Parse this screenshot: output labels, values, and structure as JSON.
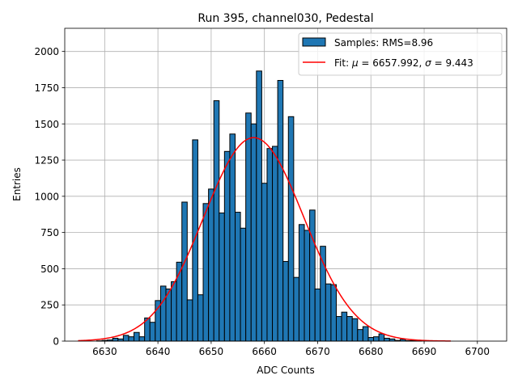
{
  "chart_data": {
    "type": "bar",
    "title": "Run 395, channel030, Pedestal",
    "xlabel": "ADC Counts",
    "ylabel": "Entries",
    "xlim": [
      6622.5,
      6705.5
    ],
    "ylim": [
      0,
      2160
    ],
    "grid": true,
    "legend_position": "top-right",
    "xticks": [
      6630,
      6640,
      6650,
      6660,
      6670,
      6680,
      6690,
      6700
    ],
    "yticks": [
      0,
      250,
      500,
      750,
      1000,
      1250,
      1500,
      1750,
      2000
    ],
    "bar_color": "#1f77b4",
    "fit_color": "#ff0000",
    "series": [
      {
        "name": "Samples: RMS=8.96",
        "kind": "histogram",
        "bin_width": 1,
        "bin_centers": [
          6629,
          6630,
          6631,
          6632,
          6633,
          6634,
          6635,
          6636,
          6637,
          6638,
          6639,
          6640,
          6641,
          6642,
          6643,
          6644,
          6645,
          6646,
          6647,
          6648,
          6649,
          6650,
          6651,
          6652,
          6653,
          6654,
          6655,
          6656,
          6657,
          6658,
          6659,
          6660,
          6661,
          6662,
          6663,
          6664,
          6665,
          6666,
          6667,
          6668,
          6669,
          6670,
          6671,
          6672,
          6673,
          6674,
          6675,
          6676,
          6677,
          6678,
          6679,
          6680,
          6681,
          6682,
          6683,
          6684,
          6685,
          6686,
          6687,
          6688,
          6689
        ],
        "values": [
          2,
          5,
          8,
          20,
          15,
          40,
          30,
          60,
          30,
          160,
          130,
          280,
          380,
          360,
          410,
          545,
          960,
          285,
          1390,
          320,
          950,
          1050,
          1660,
          885,
          1310,
          1430,
          890,
          780,
          1575,
          1500,
          1865,
          1090,
          1330,
          1345,
          1800,
          550,
          1550,
          440,
          805,
          765,
          905,
          360,
          655,
          395,
          390,
          170,
          200,
          170,
          155,
          80,
          100,
          25,
          30,
          50,
          20,
          15,
          5,
          12,
          3,
          5,
          2
        ]
      },
      {
        "name": "Fit: μ = 6657.992, σ = 9.443",
        "kind": "gaussian_fit",
        "mu": 6657.992,
        "sigma": 9.443,
        "amplitude": 1405,
        "x_range": [
          6625,
          6695
        ]
      }
    ]
  },
  "legend": {
    "samples_label": "Samples: RMS=8.96",
    "fit_label_prefix": "Fit: ",
    "fit_mu_symbol": "μ",
    "fit_mu_value": " = 6657.992, ",
    "fit_sigma_symbol": "σ",
    "fit_sigma_value": " = 9.443"
  }
}
